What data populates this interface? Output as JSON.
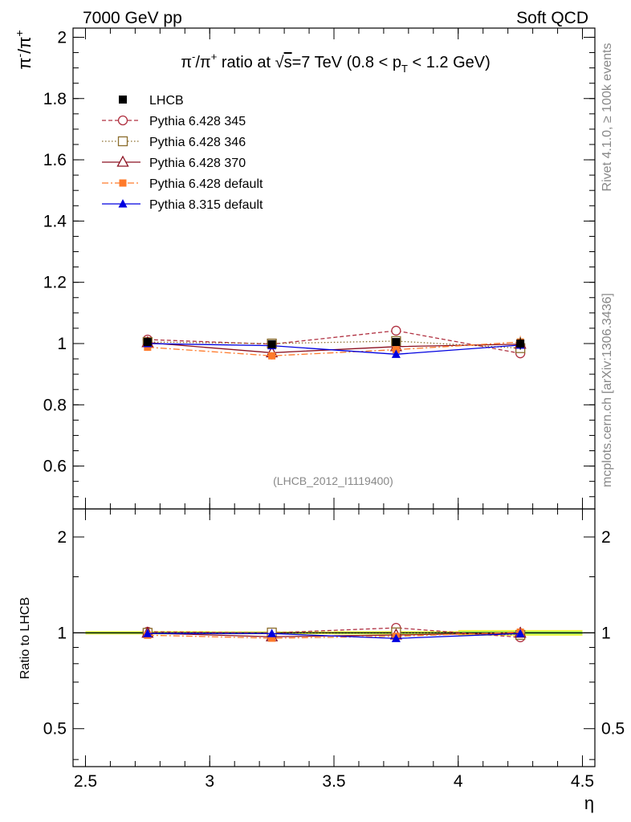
{
  "header": {
    "left": "7000 GeV pp",
    "right": "Soft QCD"
  },
  "side": {
    "rivet": "Rivet 4.1.0, ≥ 100k events",
    "mcplots": "mcplots.cern.ch [arXiv:1306.3436]"
  },
  "chart_data": {
    "type": "line",
    "title": "π⁻/π⁺ ratio at √s=7 TeV (0.8 < p_T < 1.2 GeV)",
    "title_parts": {
      "pre": "π",
      "minus": "-",
      "slash": "/π",
      "plus": "+",
      "mid": " ratio at ",
      "sqrt": "√",
      "s": "s",
      "post": "=7 TeV (0.8 < p",
      "sub": "T",
      "tail": " < 1.2 GeV)"
    },
    "ylabel": {
      "pi": "π",
      "minus": "-",
      "slash": "/π",
      "plus": "+"
    },
    "xlabel": "η",
    "ratio_ylabel": "Ratio to LHCB",
    "watermark": "(LHCB_2012_I1119400)",
    "xlim": [
      2.45,
      4.55
    ],
    "ylim": [
      0.46,
      2.03
    ],
    "ratio_ylim": [
      0.38,
      2.45
    ],
    "x_ticks": [
      "2.5",
      "3",
      "3.5",
      "4",
      "4.5"
    ],
    "x_tick_values": [
      2.5,
      3,
      3.5,
      4,
      4.5
    ],
    "y_ticks": [
      "0.6",
      "0.8",
      "1",
      "1.2",
      "1.4",
      "1.6",
      "1.8",
      "2"
    ],
    "y_tick_values": [
      0.6,
      0.8,
      1.0,
      1.2,
      1.4,
      1.6,
      1.8,
      2.0
    ],
    "ratio_y_ticks": [
      "0.5",
      "1",
      "2"
    ],
    "ratio_y_tick_values": [
      0.5,
      1,
      2
    ],
    "x": [
      2.75,
      3.25,
      3.75,
      4.25
    ],
    "x_edges": [
      2.5,
      3.0,
      3.5,
      4.0,
      4.5
    ],
    "data": {
      "name": "LHCB",
      "values": [
        1.005,
        0.998,
        1.005,
        1.0
      ],
      "errors": [
        0.012,
        0.01,
        0.012,
        0.02
      ],
      "color": "#000000"
    },
    "series": [
      {
        "name": "Pythia 6.428 345",
        "values": [
          1.013,
          0.998,
          1.042,
          0.968
        ],
        "errors": [
          0.012,
          0.01,
          0.012,
          0.012
        ],
        "color": "#b03040",
        "dash": "5,3",
        "marker": "circle-open"
      },
      {
        "name": "Pythia 6.428 346",
        "values": [
          1.005,
          1.0,
          1.008,
          0.985
        ],
        "errors": [
          0.01,
          0.01,
          0.01,
          0.012
        ],
        "color": "#8b6d2c",
        "dash": "1.5,2.5",
        "marker": "square-open"
      },
      {
        "name": "Pythia 6.428 370",
        "values": [
          1.003,
          0.97,
          0.99,
          0.998
        ],
        "errors": [
          0.01,
          0.01,
          0.01,
          0.012
        ],
        "color": "#8b1020",
        "dash": "",
        "marker": "triangle-open"
      },
      {
        "name": "Pythia 6.428 default",
        "values": [
          0.988,
          0.96,
          0.98,
          1.005
        ],
        "errors": [
          0.012,
          0.012,
          0.012,
          0.02
        ],
        "color": "#ff7a2a",
        "dash": "8,3,2,3",
        "marker": "square-filled"
      },
      {
        "name": "Pythia 8.315 default",
        "values": [
          1.0,
          0.993,
          0.965,
          0.995
        ],
        "errors": [
          0.006,
          0.006,
          0.006,
          0.008
        ],
        "color": "#0000e0",
        "dash": "",
        "marker": "triangle-filled"
      }
    ]
  }
}
